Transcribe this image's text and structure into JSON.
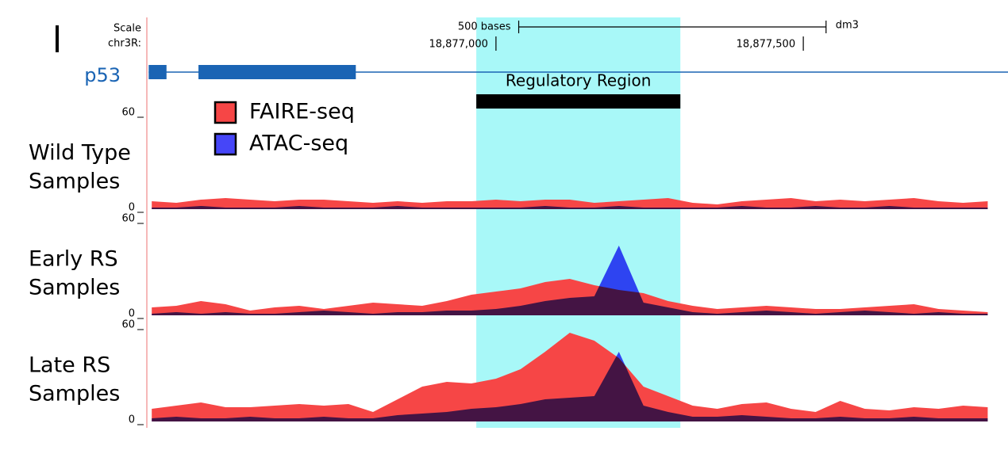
{
  "chart_data": {
    "type": "genome-tracks",
    "scale_label": "Scale",
    "chrom_label": "chr3R:",
    "scale_bar": {
      "label": "500 bases",
      "start": 18877037,
      "end": 18877537
    },
    "assembly": "dm3",
    "xlim": [
      18876432,
      18877833
    ],
    "xticks": [
      {
        "value": 18877000,
        "label": "18,877,000"
      },
      {
        "value": 18877500,
        "label": "18,877,500"
      }
    ],
    "gene": {
      "name": "p53",
      "color": "#1a64b4",
      "exons": [
        [
          18876435,
          18876464
        ],
        [
          18876516,
          18876772
        ]
      ]
    },
    "region": {
      "label": "Regulatory Region",
      "start": 18876968,
      "end": 18877300,
      "color": "#a8f8f8"
    },
    "series": [
      {
        "name": "FAIRE-seq",
        "color": "#f64646"
      },
      {
        "name": "ATAC-seq",
        "color": "#4646f8"
      }
    ],
    "ylim": [
      0,
      60
    ],
    "yticks": [
      0,
      60
    ],
    "x": [
      18876440,
      18876480,
      18876520,
      18876560,
      18876600,
      18876640,
      18876680,
      18876720,
      18876760,
      18876800,
      18876840,
      18876880,
      18876920,
      18876960,
      18877000,
      18877040,
      18877080,
      18877120,
      18877160,
      18877200,
      18877240,
      18877280,
      18877320,
      18877360,
      18877400,
      18877440,
      18877480,
      18877520,
      18877560,
      18877600,
      18877640,
      18877680,
      18877720,
      18877760,
      18877800
    ],
    "tracks": [
      {
        "label": [
          "Wild Type",
          "Samples"
        ],
        "values": [
          [
            5,
            4,
            6,
            7,
            6,
            5,
            6,
            6,
            5,
            4,
            5,
            4,
            5,
            5,
            6,
            5,
            6,
            6,
            4,
            5,
            6,
            7,
            4,
            3,
            5,
            6,
            7,
            5,
            6,
            5,
            6,
            7,
            5,
            4,
            5
          ],
          [
            1,
            1,
            2,
            1,
            1,
            1,
            2,
            1,
            1,
            1,
            2,
            1,
            1,
            1,
            1,
            1,
            2,
            1,
            1,
            2,
            1,
            1,
            1,
            1,
            2,
            1,
            1,
            2,
            1,
            1,
            2,
            1,
            1,
            1,
            1
          ]
        ]
      },
      {
        "label": [
          "Early RS",
          "Samples"
        ],
        "values": [
          [
            5,
            6,
            9,
            7,
            3,
            5,
            6,
            4,
            6,
            8,
            7,
            6,
            9,
            13,
            15,
            17,
            21,
            23,
            19,
            16,
            14,
            9,
            6,
            4,
            5,
            6,
            5,
            4,
            4,
            5,
            6,
            7,
            4,
            3,
            2
          ],
          [
            1,
            2,
            1,
            2,
            1,
            1,
            2,
            3,
            2,
            1,
            2,
            2,
            3,
            3,
            4,
            6,
            9,
            11,
            12,
            44,
            8,
            5,
            2,
            1,
            2,
            3,
            2,
            1,
            2,
            3,
            2,
            1,
            2,
            1,
            1
          ]
        ]
      },
      {
        "label": [
          "Late RS",
          "Samples"
        ],
        "values": [
          [
            8,
            10,
            12,
            9,
            9,
            10,
            11,
            10,
            11,
            6,
            14,
            22,
            25,
            24,
            27,
            33,
            44,
            56,
            51,
            40,
            22,
            16,
            10,
            8,
            11,
            12,
            8,
            6,
            13,
            8,
            7,
            9,
            8,
            10,
            9
          ],
          [
            2,
            3,
            2,
            2,
            3,
            2,
            2,
            3,
            2,
            2,
            4,
            5,
            6,
            8,
            9,
            11,
            14,
            15,
            16,
            44,
            10,
            6,
            3,
            3,
            4,
            3,
            2,
            2,
            3,
            2,
            2,
            3,
            2,
            2,
            2
          ]
        ]
      }
    ]
  }
}
